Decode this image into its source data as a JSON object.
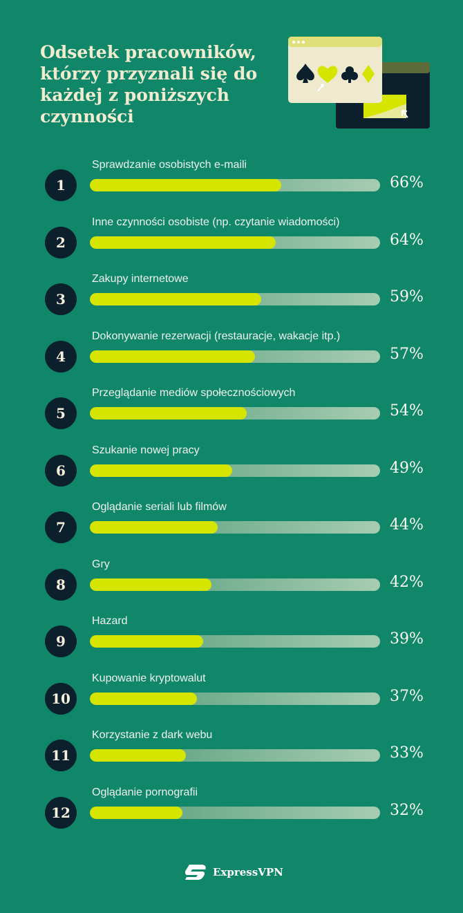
{
  "title": "Odsetek pracowników, którzy przyznali się do każdej z poniższych czynności",
  "brand": "ExpressVPN",
  "colors": {
    "background": "#11876a",
    "bar_fill": "#d5e500",
    "number_circle": "#0b1f2c"
  },
  "chart_data": {
    "type": "bar",
    "orientation": "horizontal",
    "title": "Odsetek pracowników, którzy przyznali się do każdej z poniższych czynności",
    "xlim": [
      0,
      100
    ],
    "unit": "%",
    "ranks": [
      "1",
      "2",
      "3",
      "4",
      "5",
      "6",
      "7",
      "8",
      "9",
      "10",
      "11",
      "12"
    ],
    "categories": [
      "Sprawdzanie osobistych e-maili",
      "Inne czynności osobiste (np. czytanie wiadomości)",
      "Zakupy internetowe",
      "Dokonywanie rezerwacji (restauracje, wakacje itp.)",
      "Przeglądanie mediów społecznościowych",
      "Szukanie nowej pracy",
      "Oglądanie seriali lub filmów",
      "Gry",
      "Hazard",
      "Kupowanie kryptowalut",
      "Korzystanie z dark webu",
      "Oglądanie pornografii"
    ],
    "values": [
      66,
      64,
      59,
      57,
      54,
      49,
      44,
      42,
      39,
      37,
      33,
      32
    ],
    "labels": [
      "66%",
      "64%",
      "59%",
      "57%",
      "54%",
      "49%",
      "44%",
      "42%",
      "39%",
      "37%",
      "33%",
      "32%"
    ]
  }
}
